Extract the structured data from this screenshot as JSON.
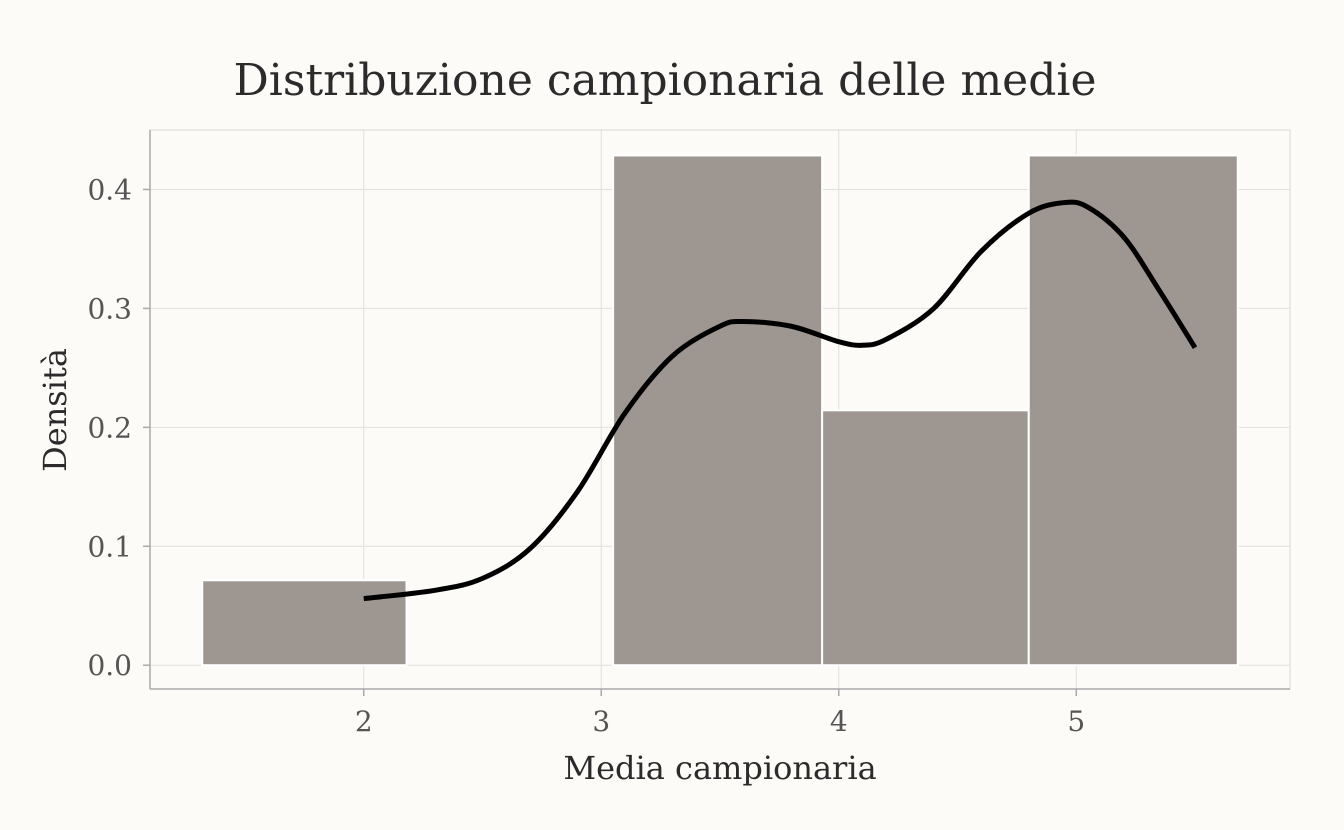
{
  "chart_data": {
    "type": "bar",
    "title": "Distribuzione campionaria delle medie",
    "xlabel": "Media campionaria",
    "ylabel": "Densità",
    "xlim": [
      1.1,
      5.9
    ],
    "ylim": [
      -0.02,
      0.45
    ],
    "x_ticks": [
      2,
      3,
      4,
      5
    ],
    "x_tick_labels": [
      "2",
      "3",
      "4",
      "5"
    ],
    "y_ticks": [
      0.0,
      0.1,
      0.2,
      0.3,
      0.4
    ],
    "y_tick_labels": [
      "0.0",
      "0.1",
      "0.2",
      "0.3",
      "0.4"
    ],
    "grid": true,
    "histogram": {
      "bins": [
        {
          "x0": 1.32,
          "x1": 2.18,
          "density": 0.0714
        },
        {
          "x0": 2.18,
          "x1": 3.05,
          "density": 0.0
        },
        {
          "x0": 3.05,
          "x1": 3.93,
          "density": 0.4286
        },
        {
          "x0": 3.93,
          "x1": 4.8,
          "density": 0.2143
        },
        {
          "x0": 4.8,
          "x1": 5.68,
          "density": 0.4286
        }
      ],
      "color": "#9e9690"
    },
    "density_curve": {
      "color": "#000000",
      "x": [
        2.0,
        2.3,
        2.5,
        2.7,
        2.9,
        3.1,
        3.3,
        3.5,
        3.6,
        3.8,
        4.0,
        4.1,
        4.2,
        4.4,
        4.6,
        4.8,
        4.95,
        5.05,
        5.2,
        5.35,
        5.5
      ],
      "y": [
        0.056,
        0.063,
        0.073,
        0.098,
        0.146,
        0.212,
        0.26,
        0.285,
        0.289,
        0.285,
        0.272,
        0.269,
        0.274,
        0.3,
        0.348,
        0.38,
        0.389,
        0.385,
        0.36,
        0.315,
        0.267
      ]
    }
  }
}
